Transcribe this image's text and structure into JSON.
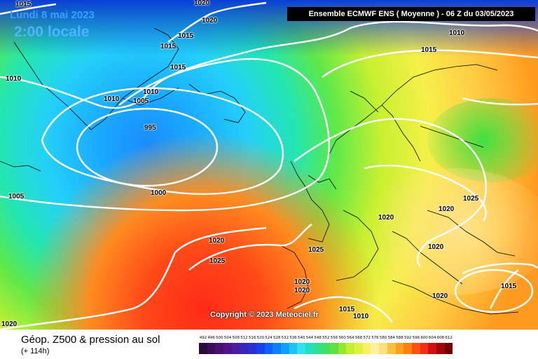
{
  "header": {
    "date": "Lundi 8 mai 2023",
    "time": "2:00 locale",
    "model_run": "Ensemble ECMWF ENS  ( Moyenne )  - 06 Z du 03/05/2023"
  },
  "copyright": "Copyright © 2023 Meteociel.fr",
  "footer": {
    "title": "Géop. Z500 & pression au sol",
    "lead_time": "(+ 114h)"
  },
  "isobar_labels": [
    "1020",
    "1015",
    "1010",
    "1015",
    "1015",
    "1015",
    "1010",
    "1010",
    "1005",
    "995",
    "1000",
    "1005",
    "1020",
    "1025",
    "1025",
    "1020",
    "1020",
    "1015",
    "1010",
    "1020",
    "1025",
    "1020",
    "1020",
    "1020",
    "1015",
    "1020",
    "1010",
    "1015",
    "1020",
    "1010"
  ],
  "legend": {
    "values": [
      "492",
      "496",
      "500",
      "504",
      "508",
      "512",
      "516",
      "520",
      "524",
      "528",
      "532",
      "536",
      "540",
      "544",
      "548",
      "552",
      "556",
      "560",
      "564",
      "568",
      "572",
      "576",
      "580",
      "584",
      "588",
      "592",
      "596",
      "600",
      "604",
      "608",
      "612"
    ],
    "colors": [
      "#2a0a3a",
      "#3c0e5a",
      "#4a1070",
      "#50148a",
      "#4a1ea0",
      "#3a26b8",
      "#2a30d2",
      "#1a40ea",
      "#1060ff",
      "#1080ff",
      "#10a0ff",
      "#20c0ff",
      "#30e0f0",
      "#20e0c0",
      "#30e090",
      "#40e060",
      "#60e040",
      "#90e830",
      "#c0f030",
      "#e0f040",
      "#f8f060",
      "#fff0a0",
      "#ffe080",
      "#ffc040",
      "#ffa020",
      "#ff8010",
      "#ff5010",
      "#f03010",
      "#d01010",
      "#a00808",
      "#700404"
    ]
  }
}
